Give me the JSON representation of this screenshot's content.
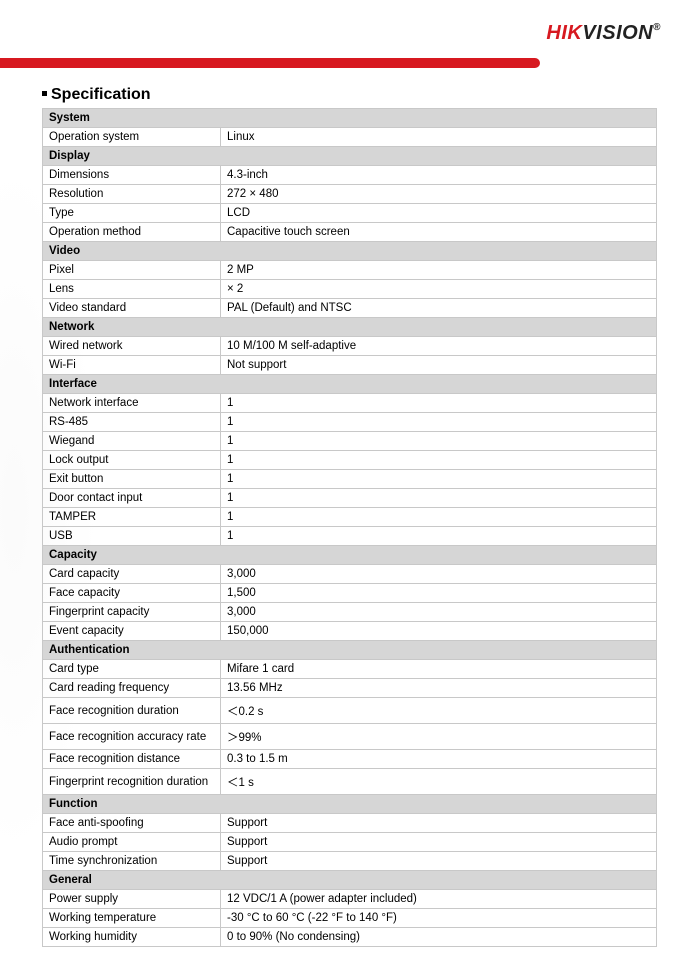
{
  "logo": {
    "hik": "HIK",
    "vision": "VISION",
    "reg": "®"
  },
  "section_title": "Specification",
  "colors": {
    "brand_red": "#d71920",
    "group_bg": "#d6d6d6",
    "border": "#c8c8c8",
    "text": "#000000",
    "background": "#ffffff"
  },
  "groups": [
    {
      "name": "System",
      "rows": [
        {
          "k": "Operation system",
          "v": "Linux"
        }
      ]
    },
    {
      "name": "Display",
      "rows": [
        {
          "k": "Dimensions",
          "v": "4.3-inch"
        },
        {
          "k": "Resolution",
          "v": "272 × 480"
        },
        {
          "k": "Type",
          "v": "LCD"
        },
        {
          "k": "Operation method",
          "v": "Capacitive touch screen"
        }
      ]
    },
    {
      "name": "Video",
      "rows": [
        {
          "k": "Pixel",
          "v": "2 MP"
        },
        {
          "k": "Lens",
          "v": "× 2"
        },
        {
          "k": "Video standard",
          "v": "PAL (Default) and NTSC"
        }
      ]
    },
    {
      "name": "Network",
      "rows": [
        {
          "k": "Wired network",
          "v": "10 M/100 M self-adaptive"
        },
        {
          "k": "Wi-Fi",
          "v": "Not support"
        }
      ]
    },
    {
      "name": "Interface",
      "rows": [
        {
          "k": "Network interface",
          "v": "1"
        },
        {
          "k": "RS-485",
          "v": "1"
        },
        {
          "k": "Wiegand",
          "v": "1"
        },
        {
          "k": "Lock output",
          "v": "1"
        },
        {
          "k": "Exit button",
          "v": "1"
        },
        {
          "k": "Door contact input",
          "v": "1"
        },
        {
          "k": "TAMPER",
          "v": "1"
        },
        {
          "k": "USB",
          "v": "1"
        }
      ]
    },
    {
      "name": "Capacity",
      "rows": [
        {
          "k": "Card capacity",
          "v": "3,000"
        },
        {
          "k": "Face capacity",
          "v": "1,500"
        },
        {
          "k": "Fingerprint capacity",
          "v": "3,000"
        },
        {
          "k": "Event capacity",
          "v": "150,000"
        }
      ]
    },
    {
      "name": "Authentication",
      "rows": [
        {
          "k": "Card type",
          "v": "Mifare 1 card"
        },
        {
          "k": "Card reading frequency",
          "v": "13.56 MHz"
        },
        {
          "k": "Face recognition duration",
          "v": "＜0.2 s",
          "tall": true
        },
        {
          "k": "Face recognition accuracy rate",
          "v": "＞99%",
          "tall": true
        },
        {
          "k": "Face recognition distance",
          "v": "0.3 to 1.5 m"
        },
        {
          "k": "Fingerprint recognition duration",
          "v": "＜1 s",
          "tall": true
        }
      ]
    },
    {
      "name": "Function",
      "rows": [
        {
          "k": "Face anti-spoofing",
          "v": "Support"
        },
        {
          "k": "Audio prompt",
          "v": "Support"
        },
        {
          "k": "Time synchronization",
          "v": "Support"
        }
      ]
    },
    {
      "name": "General",
      "rows": [
        {
          "k": "Power supply",
          "v": "12 VDC/1 A (power adapter included)"
        },
        {
          "k": "Working temperature",
          "v": "-30 °C to 60 °C (-22 °F to 140 °F)"
        },
        {
          "k": "Working humidity",
          "v": "0 to 90% (No condensing)"
        }
      ]
    }
  ]
}
